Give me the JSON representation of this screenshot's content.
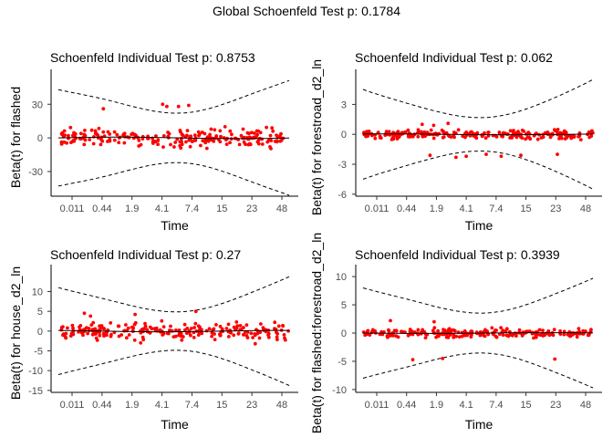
{
  "global_title": "Global Schoenfeld Test p: 0.1784",
  "chart_data": [
    {
      "type": "scatter",
      "title": "Schoenfeld Individual Test p: 0.8753",
      "xlabel": "Time",
      "ylabel": "Beta(t) for flashed",
      "x_ticks": [
        "0.011",
        "0.44",
        "1.9",
        "4.1",
        "7.4",
        "15",
        "23",
        "48"
      ],
      "y_ticks": [
        30,
        0,
        -30
      ],
      "ylim": [
        -52,
        53
      ],
      "band_half_width_center": 25,
      "band_half_width_left": 43,
      "band_half_width_right": 50,
      "spread": 8,
      "outliers": [
        28,
        29,
        26,
        30,
        28
      ],
      "point_color": "#ff0000"
    },
    {
      "type": "scatter",
      "title": "Schoenfeld Individual Test p: 0.062",
      "xlabel": "Time",
      "ylabel": "Beta(t) for forestroad_d2_ln",
      "x_ticks": [
        "0.011",
        "0.44",
        "1.9",
        "4.1",
        "7.4",
        "15",
        "23",
        "48"
      ],
      "y_ticks": [
        3,
        0,
        -3,
        -6
      ],
      "ylim": [
        -6.2,
        5.6
      ],
      "band_half_width_center": 1.9,
      "band_half_width_left": 4.5,
      "band_half_width_right": 5.4,
      "spread": 0.5,
      "outliers": [
        -2.1,
        -2.2,
        -2.0,
        -2.3,
        -2.1,
        -2.2,
        -2.0,
        1.0,
        1.1,
        0.9
      ],
      "point_color": "#ff0000"
    },
    {
      "type": "scatter",
      "title": "Schoenfeld Individual Test p: 0.27",
      "xlabel": "Time",
      "ylabel": "Beta(t) for house_d2_ln",
      "x_ticks": [
        "0.011",
        "0.44",
        "1.9",
        "4.1",
        "7.4",
        "15",
        "23",
        "48"
      ],
      "y_ticks": [
        10,
        5,
        0,
        -5,
        -10,
        -15
      ],
      "ylim": [
        -15.5,
        14.5
      ],
      "band_half_width_center": 5.5,
      "band_half_width_left": 11,
      "band_half_width_right": 13.5,
      "spread": 2.2,
      "outliers": [
        4.5,
        4.2,
        5.0,
        -3.0,
        -3.2,
        3.8
      ],
      "point_color": "#ff0000"
    },
    {
      "type": "scatter",
      "title": "Schoenfeld Individual Test p: 0.3939",
      "xlabel": "Time",
      "ylabel": "Beta(t) for flashed:forestroad_d2_ln",
      "x_ticks": [
        "0.011",
        "0.44",
        "1.9",
        "4.1",
        "7.4",
        "15",
        "23",
        "48"
      ],
      "y_ticks": [
        10,
        5,
        0,
        -5,
        -10
      ],
      "ylim": [
        -10.5,
        10.5
      ],
      "band_half_width_center": 4.0,
      "band_half_width_left": 8,
      "band_half_width_right": 9.5,
      "spread": 0.9,
      "outliers": [
        -4.6,
        -4.7,
        -4.5,
        2.0,
        2.2
      ],
      "point_color": "#ff0000"
    }
  ]
}
